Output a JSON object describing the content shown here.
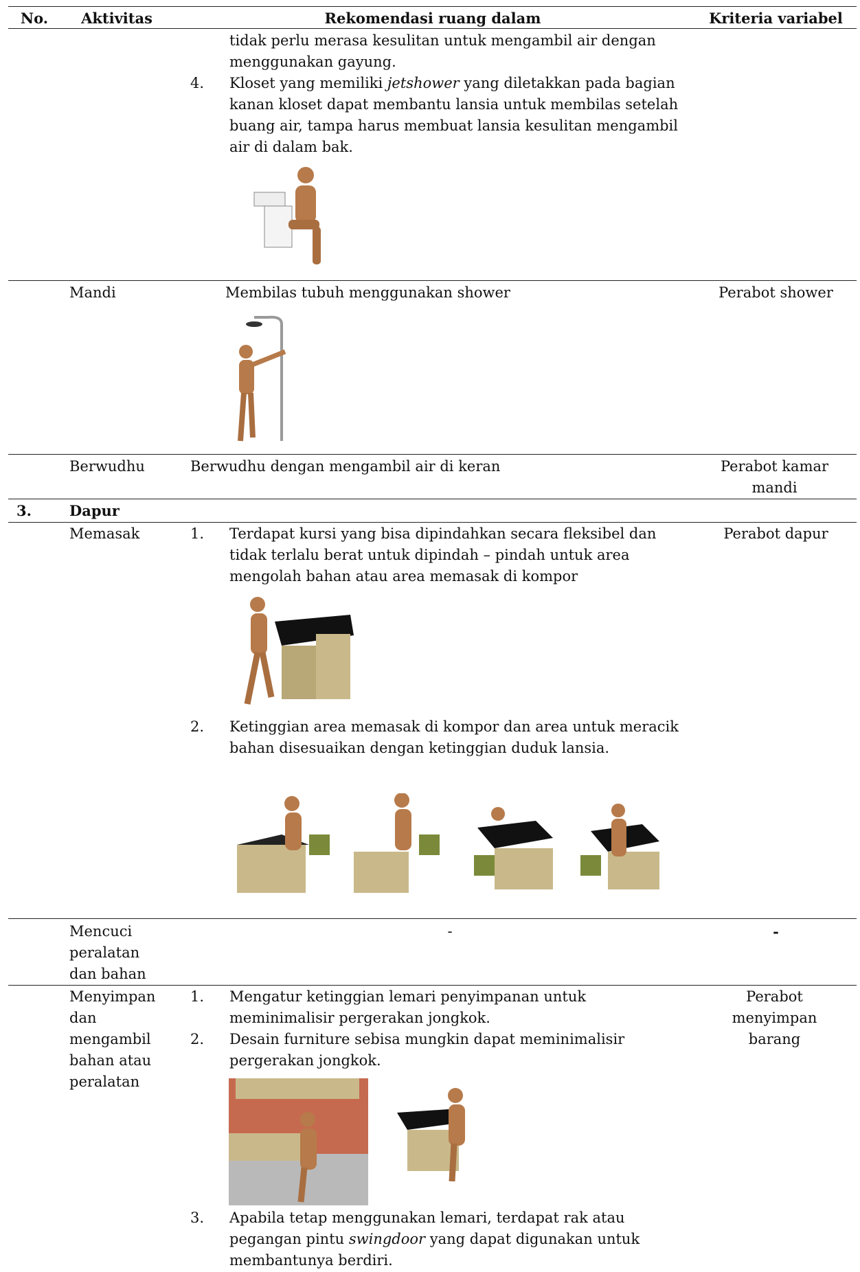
{
  "table": {
    "header": [
      "No.",
      "Aktivitas",
      "Rekomendasi ruang dalam",
      "Kriteria variabel"
    ],
    "rows": [
      {
        "items": [
          {
            "text": [
              "tidak perlu merasa kesulitan untuk mengambil air dengan menggunakan gayung."
            ]
          },
          {
            "number": "4.",
            "text": [
              "Kloset yang memiliki ",
              "jetshower",
              " yang diletakkan pada bagian kanan kloset dapat membantu lansia untuk membilas setelah buang air, tampa harus membuat lansia kesulitan mengambil air di dalam bak."
            ]
          }
        ]
      },
      {
        "activity": "Mandi",
        "recommendation": "Membilas tubuh menggunakan shower",
        "criteria": "Perabot shower"
      },
      {
        "activity": "Berwudhu",
        "recommendation": "Berwudhu dengan mengambil air di keran",
        "criteria": "Perabot kamar mandi"
      },
      {
        "number": "3.",
        "section": "Dapur"
      },
      {
        "activity": "Memasak",
        "items": [
          {
            "number": "1.",
            "text": [
              "Terdapat kursi yang bisa dipindahkan secara fleksibel dan tidak terlalu berat untuk dipindah – pindah untuk area mengolah bahan atau area memasak di kompor"
            ]
          },
          {
            "number": "2.",
            "text": [
              "Ketinggian area memasak di kompor dan area untuk meracik bahan disesuaikan dengan ketinggian duduk lansia."
            ]
          }
        ],
        "criteria": "Perabot dapur"
      },
      {
        "activity": "Mencuci peralatan dan bahan",
        "recommendation": "-",
        "criteria": "-"
      },
      {
        "activity": "Menyimpan dan mengambil bahan atau peralatan",
        "items": [
          {
            "number": "1.",
            "text": [
              "Mengatur ketinggian lemari penyimpanan untuk meminimalisir pergerakan jongkok."
            ]
          },
          {
            "number": "2.",
            "text": [
              "Desain furniture sebisa mungkin dapat meminimalisir pergerakan jongkok."
            ]
          },
          {
            "number": "3.",
            "text": [
              "Apabila tetap menggunakan lemari, terdapat rak atau pegangan pintu ",
              "swingdoor",
              " yang dapat digunakan untuk membantunya berdiri."
            ]
          }
        ],
        "criteria": "Perabot menyimpan barang"
      }
    ]
  }
}
